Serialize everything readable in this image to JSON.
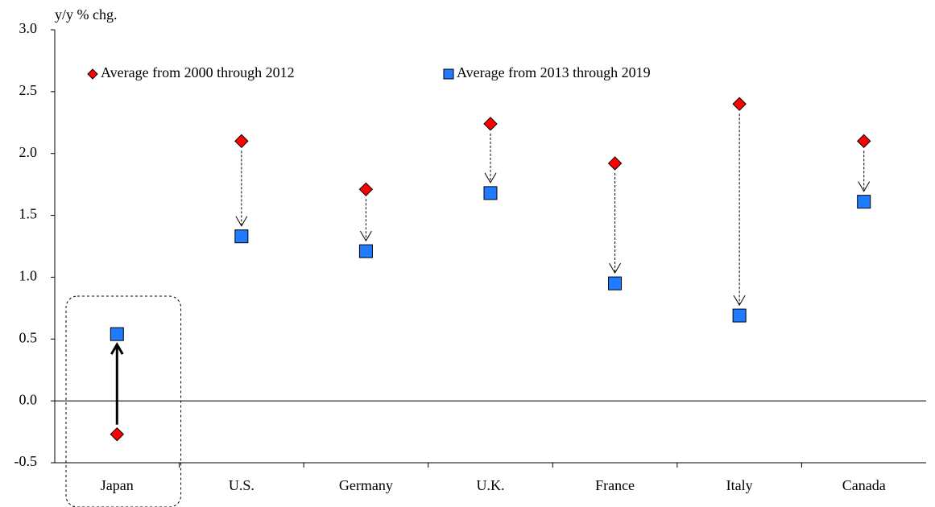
{
  "chart_data": {
    "type": "dot-change",
    "y_axis_label": "y/y % chg.",
    "categories": [
      "Japan",
      "U.S.",
      "Germany",
      "U.K.",
      "France",
      "Italy",
      "Canada"
    ],
    "series": [
      {
        "name": "Average from 2000 through 2012",
        "color": "#ff0000",
        "marker": "diamond",
        "values": [
          -0.27,
          2.1,
          1.71,
          2.24,
          1.92,
          2.4,
          2.1
        ]
      },
      {
        "name": "Average from 2013 through 2019",
        "color": "#1f7bff",
        "marker": "square",
        "values": [
          0.54,
          1.33,
          1.21,
          1.68,
          0.95,
          0.69,
          1.61
        ]
      }
    ],
    "ylim": [
      -0.5,
      3.0
    ],
    "yticks": [
      {
        "value": 3,
        "label": "3.0"
      },
      2.5,
      {
        "value": 2,
        "label": "2.0"
      },
      1.5,
      {
        "value": 1,
        "label": "1.0"
      },
      0.5,
      {
        "value": 0,
        "label": "0.0"
      },
      -0.5
    ],
    "highlight_category": 0
  }
}
